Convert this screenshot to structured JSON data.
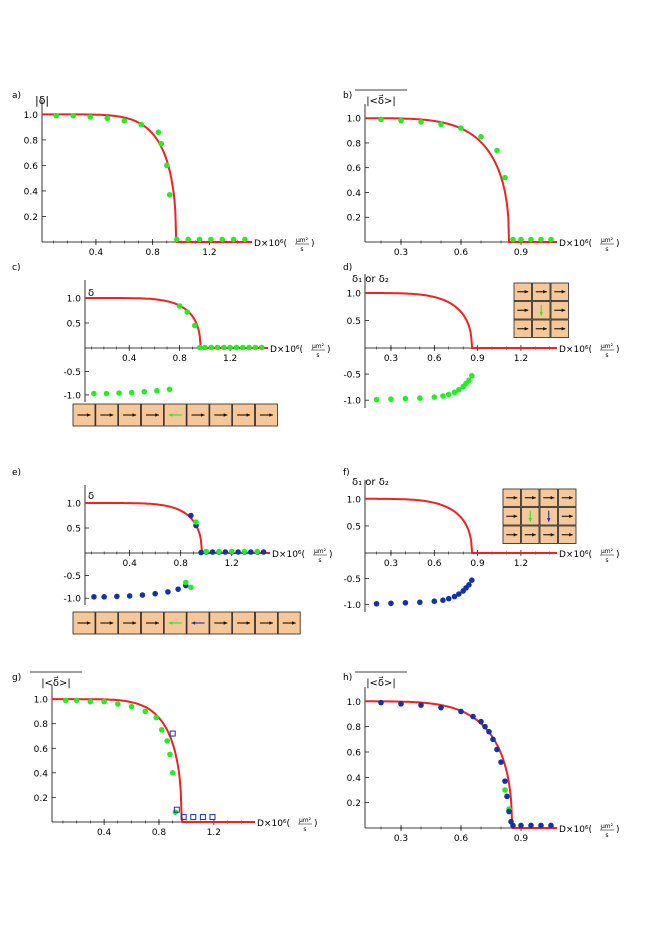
{
  "colors": {
    "curve": "#ee2222",
    "green": "#22ee22",
    "blue": "#1133aa",
    "tile": "#f6c899",
    "tile_border": "#222222",
    "axis": "#000000"
  },
  "chart_data": [
    {
      "id": "a",
      "panel_label": "a)",
      "type": "line",
      "ylabel": "|δ|",
      "xlabel": "D×10⁶(",
      "xunit_num": "μm²",
      "xunit_den": "s",
      "xlim": [
        0.02,
        1.5
      ],
      "ylim": [
        0,
        1.05
      ],
      "xticks": [
        0.4,
        0.8,
        1.2
      ],
      "yticks": [
        0.2,
        0.4,
        0.6,
        0.8,
        1.0
      ],
      "curve": {
        "a": 1.0,
        "Dc": 0.965,
        "n": 6
      },
      "series": [
        {
          "name": "green",
          "color": "green",
          "marker": "circle",
          "x": [
            0.12,
            0.24,
            0.36,
            0.48,
            0.6,
            0.72,
            0.84,
            0.86,
            0.9,
            0.92,
            0.97,
            1.05,
            1.13,
            1.21,
            1.29,
            1.37,
            1.45
          ],
          "y": [
            0.99,
            0.99,
            0.98,
            0.97,
            0.95,
            0.92,
            0.86,
            0.77,
            0.6,
            0.37,
            0.02,
            0.02,
            0.02,
            0.02,
            0.02,
            0.02,
            0.02
          ]
        }
      ]
    },
    {
      "id": "b",
      "panel_label": "b)",
      "type": "line",
      "ylabel": "|<δ⃗>|",
      "xlabel": "D×10⁶(",
      "xunit_num": "μm²",
      "xunit_den": "s",
      "xlim": [
        0.12,
        1.08
      ],
      "ylim": [
        0,
        1.05
      ],
      "xticks": [
        0.3,
        0.6,
        0.9
      ],
      "yticks": [
        0.2,
        0.4,
        0.6,
        0.8,
        1.0
      ],
      "curve": {
        "a": 1.0,
        "Dc": 0.84,
        "n": 5
      },
      "series": [
        {
          "name": "green",
          "color": "green",
          "marker": "circle",
          "x": [
            0.2,
            0.3,
            0.4,
            0.5,
            0.6,
            0.7,
            0.78,
            0.82,
            0.86,
            0.9,
            0.95,
            1.0,
            1.05
          ],
          "y": [
            0.99,
            0.98,
            0.97,
            0.95,
            0.92,
            0.85,
            0.74,
            0.52,
            0.02,
            0.02,
            0.02,
            0.02,
            0.02
          ]
        }
      ]
    },
    {
      "id": "c",
      "panel_label": "c)",
      "type": "line",
      "ylabel": "δ",
      "xlabel": "D×10⁶(",
      "xunit_num": "μm²",
      "xunit_den": "s",
      "xlim": [
        0.05,
        1.5
      ],
      "ylim": [
        -1.15,
        1.2
      ],
      "xticks": [
        0.4,
        0.8,
        1.2
      ],
      "yticks": [
        -1.0,
        -0.5,
        0.5,
        1.0
      ],
      "curve": {
        "a": 1.0,
        "Dc": 0.965,
        "n": 6
      },
      "series": [
        {
          "name": "green",
          "color": "green",
          "marker": "circle",
          "x": [
            0.12,
            0.22,
            0.32,
            0.42,
            0.52,
            0.62,
            0.72,
            0.8,
            0.86,
            0.92,
            0.96,
            1.0,
            1.05,
            1.1,
            1.15,
            1.2,
            1.25,
            1.3,
            1.35,
            1.4,
            1.45
          ],
          "y": [
            -0.97,
            -0.97,
            -0.96,
            -0.95,
            -0.93,
            -0.91,
            -0.88,
            0.84,
            0.72,
            0.45,
            0.01,
            0.01,
            0.01,
            0.01,
            0.01,
            0.01,
            0.01,
            0.01,
            0.01,
            0.01,
            0.01
          ]
        }
      ],
      "tiles": [
        ">",
        ">",
        ">",
        ">",
        "<",
        ">",
        ">",
        ">",
        ">"
      ],
      "tile_colors": [
        "k",
        "k",
        "k",
        "k",
        "g",
        "k",
        "k",
        "k",
        "k"
      ]
    },
    {
      "id": "d",
      "panel_label": "d)",
      "type": "line",
      "ylabel": "δ₁ or δ₂",
      "xlabel": "D×10⁶(",
      "xunit_num": "μm²",
      "xunit_den": "s",
      "xlim": [
        0.12,
        1.45
      ],
      "ylim": [
        -1.15,
        1.2
      ],
      "xticks": [
        0.3,
        0.6,
        0.9,
        1.2
      ],
      "yticks": [
        -1.0,
        -0.5,
        0.5,
        1.0
      ],
      "curve": {
        "a": 1.0,
        "Dc": 0.86,
        "n": 5
      },
      "series": [
        {
          "name": "green",
          "color": "green",
          "marker": "circle",
          "x": [
            0.2,
            0.3,
            0.4,
            0.5,
            0.6,
            0.66,
            0.7,
            0.74,
            0.77,
            0.8,
            0.82,
            0.84,
            0.86
          ],
          "y": [
            -0.99,
            -0.98,
            -0.97,
            -0.96,
            -0.94,
            -0.92,
            -0.89,
            -0.85,
            -0.8,
            -0.74,
            -0.68,
            -0.62,
            -0.53
          ]
        }
      ],
      "grid_tiles": [
        [
          "r",
          "r",
          "r"
        ],
        [
          "r",
          "d",
          "r"
        ],
        [
          "r",
          "r",
          "r"
        ]
      ],
      "grid_colors": [
        [
          "k",
          "k",
          "k"
        ],
        [
          "k",
          "g",
          "k"
        ],
        [
          "k",
          "k",
          "k"
        ]
      ]
    },
    {
      "id": "e",
      "panel_label": "e)",
      "type": "line",
      "ylabel": "δ",
      "xlabel": "D×10⁶(",
      "xunit_num": "μm²",
      "xunit_den": "s",
      "xlim": [
        0.05,
        1.5
      ],
      "ylim": [
        -1.15,
        1.2
      ],
      "xticks": [
        0.4,
        0.8,
        1.2
      ],
      "yticks": [
        -1.0,
        -0.5,
        0.5,
        1.0
      ],
      "curve": {
        "a": 1.0,
        "Dc": 0.965,
        "n": 6
      },
      "series": [
        {
          "name": "blue",
          "color": "blue",
          "marker": "circle",
          "x": [
            0.12,
            0.2,
            0.3,
            0.4,
            0.5,
            0.6,
            0.7,
            0.78,
            0.84,
            0.88,
            0.92,
            0.96,
            1.0,
            1.05,
            1.1,
            1.15,
            1.2,
            1.25,
            1.3,
            1.35,
            1.4,
            1.45
          ],
          "y": [
            -0.97,
            -0.97,
            -0.96,
            -0.95,
            -0.93,
            -0.9,
            -0.86,
            -0.8,
            -0.72,
            0.75,
            0.55,
            0.01,
            0.02,
            0.02,
            0.02,
            0.02,
            0.02,
            0.02,
            0.02,
            0.02,
            0.02,
            0.02
          ]
        },
        {
          "name": "green",
          "color": "green",
          "marker": "circle",
          "x": [
            0.84,
            0.88,
            0.92,
            1.0,
            1.1,
            1.2,
            1.3,
            1.4
          ],
          "y": [
            -0.65,
            -0.76,
            0.62,
            0.03,
            0.03,
            0.03,
            0.03,
            0.03
          ]
        }
      ],
      "tiles": [
        ">",
        ">",
        ">",
        ">",
        "<",
        "<",
        ">",
        ">",
        ">",
        ">"
      ],
      "tile_colors": [
        "k",
        "k",
        "k",
        "k",
        "g",
        "b",
        "k",
        "k",
        "k",
        "k"
      ]
    },
    {
      "id": "f",
      "panel_label": "f)",
      "type": "line",
      "ylabel": "δ₁ or δ₂",
      "xlabel": "D×10⁶(",
      "xunit_num": "μm²",
      "xunit_den": "s",
      "xlim": [
        0.12,
        1.45
      ],
      "ylim": [
        -1.15,
        1.2
      ],
      "xticks": [
        0.3,
        0.6,
        0.9,
        1.2
      ],
      "yticks": [
        -1.0,
        -0.5,
        0.5,
        1.0
      ],
      "curve": {
        "a": 1.0,
        "Dc": 0.86,
        "n": 5
      },
      "series": [
        {
          "name": "blue",
          "color": "blue",
          "marker": "circle",
          "x": [
            0.2,
            0.3,
            0.4,
            0.5,
            0.6,
            0.66,
            0.7,
            0.74,
            0.77,
            0.8,
            0.82,
            0.84,
            0.86
          ],
          "y": [
            -0.99,
            -0.98,
            -0.97,
            -0.96,
            -0.94,
            -0.92,
            -0.89,
            -0.85,
            -0.8,
            -0.74,
            -0.68,
            -0.62,
            -0.53
          ]
        }
      ],
      "grid_tiles": [
        [
          "r",
          "r",
          "r",
          "r"
        ],
        [
          "r",
          "d",
          "d",
          "r"
        ],
        [
          "r",
          "r",
          "r",
          "r"
        ]
      ],
      "grid_colors": [
        [
          "k",
          "k",
          "k",
          "k"
        ],
        [
          "k",
          "g",
          "b",
          "k"
        ],
        [
          "k",
          "k",
          "k",
          "k"
        ]
      ]
    },
    {
      "id": "g",
      "panel_label": "g)",
      "type": "line",
      "ylabel": "|<δ⃗>|",
      "xlabel": "D×10⁶(",
      "xunit_num": "μm²",
      "xunit_den": "s",
      "xlim": [
        0.02,
        1.5
      ],
      "ylim": [
        0,
        1.05
      ],
      "xticks": [
        0.4,
        0.8,
        1.2
      ],
      "yticks": [
        0.2,
        0.4,
        0.6,
        0.8,
        1.0
      ],
      "curve": {
        "a": 1.0,
        "Dc": 0.965,
        "n": 6
      },
      "series": [
        {
          "name": "green",
          "color": "green",
          "marker": "circle",
          "x": [
            0.12,
            0.2,
            0.3,
            0.4,
            0.5,
            0.6,
            0.7,
            0.78,
            0.82,
            0.86,
            0.88,
            0.9,
            0.92
          ],
          "y": [
            0.99,
            0.99,
            0.98,
            0.98,
            0.96,
            0.94,
            0.9,
            0.85,
            0.75,
            0.66,
            0.55,
            0.4,
            0.08
          ]
        },
        {
          "name": "blue",
          "color": "blue",
          "marker": "square",
          "x": [
            0.9,
            0.93,
            0.98,
            1.05,
            1.12,
            1.19
          ],
          "y": [
            0.72,
            0.1,
            0.04,
            0.04,
            0.04,
            0.04
          ]
        }
      ]
    },
    {
      "id": "h",
      "panel_label": "h)",
      "type": "line",
      "ylabel": "|<δ⃗>|",
      "xlabel": "D×10⁶(",
      "xunit_num": "μm²",
      "xunit_den": "s",
      "xlim": [
        0.12,
        1.08
      ],
      "ylim": [
        0,
        1.05
      ],
      "xticks": [
        0.3,
        0.6,
        0.9
      ],
      "yticks": [
        0.2,
        0.4,
        0.6,
        0.8,
        1.0
      ],
      "curve": {
        "a": 1.0,
        "Dc": 0.855,
        "n": 5
      },
      "series": [
        {
          "name": "green",
          "color": "green",
          "marker": "circle",
          "x": [
            0.82,
            0.84
          ],
          "y": [
            0.3,
            0.15
          ]
        },
        {
          "name": "blue",
          "color": "blue",
          "marker": "circle",
          "x": [
            0.2,
            0.3,
            0.4,
            0.5,
            0.6,
            0.66,
            0.7,
            0.72,
            0.74,
            0.76,
            0.78,
            0.8,
            0.82,
            0.83,
            0.84,
            0.85,
            0.86,
            0.9,
            0.95,
            1.0,
            1.05
          ],
          "y": [
            0.99,
            0.98,
            0.97,
            0.95,
            0.92,
            0.88,
            0.84,
            0.8,
            0.76,
            0.7,
            0.62,
            0.52,
            0.37,
            0.25,
            0.13,
            0.05,
            0.02,
            0.02,
            0.02,
            0.02,
            0.02
          ]
        }
      ]
    }
  ]
}
